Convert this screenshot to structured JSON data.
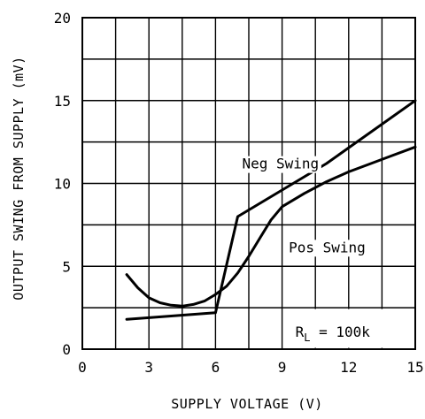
{
  "chart_data": {
    "type": "line",
    "xlabel": "SUPPLY VOLTAGE (V)",
    "ylabel": "OUTPUT SWING FROM SUPPLY (mV)",
    "xlim": [
      0,
      15
    ],
    "ylim": [
      0,
      20
    ],
    "x_ticks": [
      "0",
      "3",
      "6",
      "9",
      "12",
      "15"
    ],
    "y_ticks": [
      "0",
      "5",
      "10",
      "15",
      "20"
    ],
    "grid": true,
    "annotation": {
      "main": "R",
      "sub": "L",
      "rest": " = 100k"
    },
    "series": [
      {
        "name": "Neg Swing",
        "x": [
          2.0,
          6.0,
          7.0,
          11.0,
          15.0
        ],
        "y": [
          1.8,
          2.2,
          8.0,
          11.2,
          15.0
        ]
      },
      {
        "name": "Pos Swing",
        "x": [
          2.0,
          2.5,
          3.0,
          3.5,
          4.0,
          4.5,
          5.0,
          5.5,
          6.0,
          6.5,
          7.0,
          7.5,
          8.0,
          8.5,
          9.0,
          10.0,
          11.0,
          12.0,
          13.0,
          14.0,
          15.0
        ],
        "y": [
          4.5,
          3.7,
          3.1,
          2.8,
          2.65,
          2.6,
          2.7,
          2.9,
          3.3,
          3.8,
          4.6,
          5.6,
          6.7,
          7.8,
          8.6,
          9.4,
          10.1,
          10.7,
          11.2,
          11.7,
          12.2
        ]
      }
    ],
    "colors": {
      "line": "#000000",
      "grid": "#000000",
      "background": "#ffffff"
    }
  }
}
